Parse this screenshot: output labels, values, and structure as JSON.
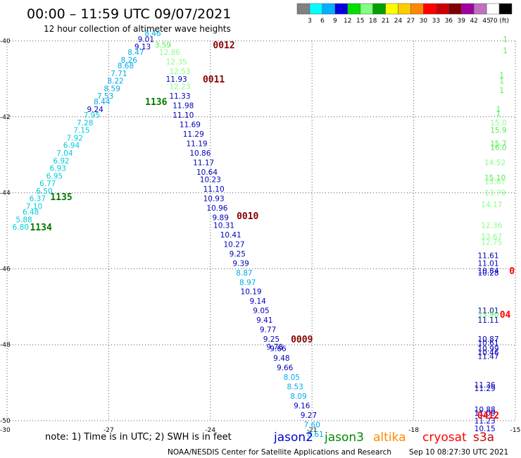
{
  "header": {
    "title": "00:00 – 11:59 UTC 09/07/2021",
    "subtitle": "12 hour collection of altimeter wave heights"
  },
  "colorbar": {
    "colors": [
      "#808080",
      "#00ffff",
      "#00b0ff",
      "#0000e0",
      "#00e000",
      "#80ff80",
      "#00a000",
      "#ffff00",
      "#ffcc00",
      "#ff8800",
      "#ff0000",
      "#cc0000",
      "#800000",
      "#a000a0",
      "#c070c0",
      "#ffffff",
      "#000000"
    ],
    "labels": [
      "3",
      "6",
      "9",
      "12",
      "15",
      "18",
      "21",
      "24",
      "27",
      "30",
      "33",
      "36",
      "39",
      "42",
      "45",
      "70 (ft)"
    ]
  },
  "footer": {
    "note": "note: 1) Time is in UTC; 2) SWH is in feet",
    "credit": "NOAA/NESDIS Center for Satellite Applications and Research",
    "timestamp": "Sep 10 08:27:30 UTC 2021",
    "legend": [
      {
        "name": "jason2",
        "color": "#0000cc"
      },
      {
        "name": "jason3",
        "color": "#008800"
      },
      {
        "name": "altika",
        "color": "#ff8800"
      },
      {
        "name": "cryosat",
        "color": "#ff0000"
      },
      {
        "name": "s3a",
        "color": "#cc0000"
      }
    ]
  },
  "chart_data": {
    "type": "scatter",
    "xlim": [
      -30,
      -15
    ],
    "ylim": [
      -50,
      -40
    ],
    "x_ticks": [
      "-30",
      "-27",
      "-24",
      "-21",
      "-18",
      "-15"
    ],
    "y_ticks": [
      "-40",
      "-42",
      "-44",
      "-46",
      "-48",
      "-50"
    ],
    "grid": true,
    "swh_colors": {
      "c1": "#00ccdd",
      "c2": "#00aaee",
      "c3": "#0000bb",
      "c4": "#55ee55",
      "c5": "#88ff88"
    },
    "tracks": [
      {
        "times": [
          {
            "label": "1134",
            "lon": -29.0,
            "lat": -44.9,
            "color": "#007700"
          },
          {
            "label": "1135",
            "lon": -28.4,
            "lat": -44.1,
            "color": "#007700"
          },
          {
            "label": "1136",
            "lon": -25.6,
            "lat": -41.6,
            "color": "#007700"
          }
        ],
        "points": [
          {
            "lon": -29.6,
            "lat": -44.9,
            "v": "6.80",
            "c": "c1"
          },
          {
            "lon": -29.5,
            "lat": -44.7,
            "v": "5.88",
            "c": "c1"
          },
          {
            "lon": -29.3,
            "lat": -44.5,
            "v": "6.48",
            "c": "c1"
          },
          {
            "lon": -29.2,
            "lat": -44.35,
            "v": "7.10",
            "c": "c1"
          },
          {
            "lon": -29.1,
            "lat": -44.15,
            "v": "6.37",
            "c": "c1"
          },
          {
            "lon": -28.9,
            "lat": -43.95,
            "v": "6.50",
            "c": "c1"
          },
          {
            "lon": -28.8,
            "lat": -43.75,
            "v": "6.77",
            "c": "c1"
          },
          {
            "lon": -28.6,
            "lat": -43.55,
            "v": "6.95",
            "c": "c1"
          },
          {
            "lon": -28.5,
            "lat": -43.35,
            "v": "6.93",
            "c": "c1"
          },
          {
            "lon": -28.4,
            "lat": -43.15,
            "v": "6.92",
            "c": "c1"
          },
          {
            "lon": -28.3,
            "lat": -42.95,
            "v": "7.04",
            "c": "c1"
          },
          {
            "lon": -28.1,
            "lat": -42.75,
            "v": "6.94",
            "c": "c1"
          },
          {
            "lon": -28.0,
            "lat": -42.55,
            "v": "7.92",
            "c": "c1"
          },
          {
            "lon": -27.8,
            "lat": -42.35,
            "v": "7.15",
            "c": "c1"
          },
          {
            "lon": -27.7,
            "lat": -42.15,
            "v": "7.28",
            "c": "c1"
          },
          {
            "lon": -27.5,
            "lat": -41.95,
            "v": "7.95",
            "c": "c1"
          },
          {
            "lon": -27.4,
            "lat": -41.8,
            "v": "9.24",
            "c": "c3"
          },
          {
            "lon": -27.2,
            "lat": -41.6,
            "v": "8.44",
            "c": "c2"
          },
          {
            "lon": -27.1,
            "lat": -41.45,
            "v": "7.53",
            "c": "c2"
          },
          {
            "lon": -26.9,
            "lat": -41.25,
            "v": "8.59",
            "c": "c2"
          },
          {
            "lon": -26.8,
            "lat": -41.05,
            "v": "8.22",
            "c": "c2"
          },
          {
            "lon": -26.7,
            "lat": -40.85,
            "v": "7.71",
            "c": "c2"
          },
          {
            "lon": -26.5,
            "lat": -40.65,
            "v": "8.68",
            "c": "c2"
          },
          {
            "lon": -26.4,
            "lat": -40.5,
            "v": "8.26",
            "c": "c2"
          },
          {
            "lon": -26.2,
            "lat": -40.3,
            "v": "8.47",
            "c": "c2"
          },
          {
            "lon": -26.0,
            "lat": -40.15,
            "v": "9.13",
            "c": "c3"
          },
          {
            "lon": -25.9,
            "lat": -39.95,
            "v": "9.01",
            "c": "c3"
          },
          {
            "lon": -25.7,
            "lat": -39.8,
            "v": "8.46",
            "c": "c2"
          }
        ]
      },
      {
        "times": [
          {
            "label": "0012",
            "lon": -23.6,
            "lat": -40.1,
            "color": "#880000"
          },
          {
            "label": "0011",
            "lon": -23.9,
            "lat": -41.0,
            "color": "#880000"
          },
          {
            "label": "0010",
            "lon": -22.9,
            "lat": -44.6,
            "color": "#880000"
          },
          {
            "label": "0009",
            "lon": -21.3,
            "lat": -47.85,
            "color": "#880000"
          }
        ],
        "points": [
          {
            "lon": -25.4,
            "lat": -40.1,
            "v": "3.59",
            "c": "c4"
          },
          {
            "lon": -25.2,
            "lat": -40.3,
            "v": "12.86",
            "c": "c5"
          },
          {
            "lon": -25.0,
            "lat": -40.55,
            "v": "12.35",
            "c": "c5"
          },
          {
            "lon": -24.9,
            "lat": -40.8,
            "v": "12.53",
            "c": "c5"
          },
          {
            "lon": -25.0,
            "lat": -41.0,
            "v": "11.93",
            "c": "c3"
          },
          {
            "lon": -24.9,
            "lat": -41.2,
            "v": "12.23",
            "c": "c5"
          },
          {
            "lon": -24.9,
            "lat": -41.45,
            "v": "11.33",
            "c": "c3"
          },
          {
            "lon": -24.8,
            "lat": -41.7,
            "v": "11.98",
            "c": "c3"
          },
          {
            "lon": -24.8,
            "lat": -41.95,
            "v": "11.10",
            "c": "c3"
          },
          {
            "lon": -24.6,
            "lat": -42.2,
            "v": "11.69",
            "c": "c3"
          },
          {
            "lon": -24.5,
            "lat": -42.45,
            "v": "11.29",
            "c": "c3"
          },
          {
            "lon": -24.4,
            "lat": -42.7,
            "v": "11.19",
            "c": "c3"
          },
          {
            "lon": -24.3,
            "lat": -42.95,
            "v": "10.86",
            "c": "c3"
          },
          {
            "lon": -24.2,
            "lat": -43.2,
            "v": "11.17",
            "c": "c3"
          },
          {
            "lon": -24.1,
            "lat": -43.45,
            "v": "10.64",
            "c": "c3"
          },
          {
            "lon": -24.0,
            "lat": -43.65,
            "v": "10.23",
            "c": "c3"
          },
          {
            "lon": -23.9,
            "lat": -43.9,
            "v": "11.10",
            "c": "c3"
          },
          {
            "lon": -23.9,
            "lat": -44.15,
            "v": "10.93",
            "c": "c3"
          },
          {
            "lon": -23.8,
            "lat": -44.4,
            "v": "10.96",
            "c": "c3"
          },
          {
            "lon": -23.7,
            "lat": -44.65,
            "v": "9.89",
            "c": "c3"
          },
          {
            "lon": -23.6,
            "lat": -44.85,
            "v": "10.31",
            "c": "c3"
          },
          {
            "lon": -23.4,
            "lat": -45.1,
            "v": "10.41",
            "c": "c3"
          },
          {
            "lon": -23.3,
            "lat": -45.35,
            "v": "10.27",
            "c": "c3"
          },
          {
            "lon": -23.2,
            "lat": -45.6,
            "v": "9.25",
            "c": "c3"
          },
          {
            "lon": -23.1,
            "lat": -45.85,
            "v": "9.39",
            "c": "c3"
          },
          {
            "lon": -23.0,
            "lat": -46.1,
            "v": "8.87",
            "c": "c2"
          },
          {
            "lon": -22.9,
            "lat": -46.35,
            "v": "8.97",
            "c": "c2"
          },
          {
            "lon": -22.8,
            "lat": -46.6,
            "v": "10.19",
            "c": "c3"
          },
          {
            "lon": -22.6,
            "lat": -46.85,
            "v": "9.14",
            "c": "c3"
          },
          {
            "lon": -22.5,
            "lat": -47.1,
            "v": "9.05",
            "c": "c3"
          },
          {
            "lon": -22.4,
            "lat": -47.35,
            "v": "9.41",
            "c": "c3"
          },
          {
            "lon": -22.3,
            "lat": -47.6,
            "v": "9.77",
            "c": "c3"
          },
          {
            "lon": -22.2,
            "lat": -47.85,
            "v": "9.25",
            "c": "c3"
          },
          {
            "lon": -22.1,
            "lat": -48.05,
            "v": "9.78",
            "c": "c3"
          },
          {
            "lon": -22.0,
            "lat": -48.1,
            "v": "9.66",
            "c": "c3"
          },
          {
            "lon": -21.9,
            "lat": -48.35,
            "v": "9.48",
            "c": "c3"
          },
          {
            "lon": -21.8,
            "lat": -48.6,
            "v": "9.66",
            "c": "c3"
          },
          {
            "lon": -21.6,
            "lat": -48.85,
            "v": "8.05",
            "c": "c2"
          },
          {
            "lon": -21.5,
            "lat": -49.1,
            "v": "8.53",
            "c": "c2"
          },
          {
            "lon": -21.4,
            "lat": -49.35,
            "v": "8.09",
            "c": "c2"
          },
          {
            "lon": -21.3,
            "lat": -49.6,
            "v": "9.16",
            "c": "c3"
          },
          {
            "lon": -21.1,
            "lat": -49.85,
            "v": "9.27",
            "c": "c3"
          },
          {
            "lon": -21.0,
            "lat": -50.1,
            "v": "7.60",
            "c": "c2"
          },
          {
            "lon": -20.9,
            "lat": -50.35,
            "v": "8.61",
            "c": "c2"
          }
        ]
      },
      {
        "times": [
          {
            "label": "0",
            "lon": -15.1,
            "lat": -46.05,
            "color": "#ff0000"
          },
          {
            "label": "04",
            "lon": -15.3,
            "lat": -47.2,
            "color": "#ff0000"
          },
          {
            "label": "0412",
            "lon": -15.8,
            "lat": -49.85,
            "color": "#ff0000"
          }
        ],
        "points": [
          {
            "lon": -15.3,
            "lat": -39.95,
            "v": "1",
            "c": "c4"
          },
          {
            "lon": -15.3,
            "lat": -40.25,
            "v": "1",
            "c": "c4"
          },
          {
            "lon": -15.4,
            "lat": -40.9,
            "v": "1",
            "c": "c4"
          },
          {
            "lon": -15.4,
            "lat": -41.05,
            "v": "1",
            "c": "c4"
          },
          {
            "lon": -15.4,
            "lat": -41.3,
            "v": "1",
            "c": "c4"
          },
          {
            "lon": -15.5,
            "lat": -41.8,
            "v": "1",
            "c": "c4"
          },
          {
            "lon": -15.5,
            "lat": -41.9,
            "v": "1",
            "c": "c4"
          },
          {
            "lon": -15.5,
            "lat": -42.15,
            "v": "15.0",
            "c": "c5"
          },
          {
            "lon": -15.5,
            "lat": -42.35,
            "v": "15.9",
            "c": "c4"
          },
          {
            "lon": -15.5,
            "lat": -42.7,
            "v": "15.7",
            "c": "c4"
          },
          {
            "lon": -15.5,
            "lat": -42.8,
            "v": "16.0",
            "c": "c4"
          },
          {
            "lon": -15.6,
            "lat": -43.2,
            "v": "14.52",
            "c": "c5"
          },
          {
            "lon": -15.6,
            "lat": -43.6,
            "v": "15.10",
            "c": "c4"
          },
          {
            "lon": -15.6,
            "lat": -43.7,
            "v": "13.87",
            "c": "c5"
          },
          {
            "lon": -15.6,
            "lat": -44.0,
            "v": "13.79",
            "c": "c5"
          },
          {
            "lon": -15.7,
            "lat": -44.3,
            "v": "14.17",
            "c": "c5"
          },
          {
            "lon": -15.7,
            "lat": -44.85,
            "v": "12.36",
            "c": "c5"
          },
          {
            "lon": -15.7,
            "lat": -45.15,
            "v": "13.67",
            "c": "c5"
          },
          {
            "lon": -15.7,
            "lat": -45.3,
            "v": "12.75",
            "c": "c5"
          },
          {
            "lon": -15.8,
            "lat": -45.65,
            "v": "11.61",
            "c": "c3"
          },
          {
            "lon": -15.8,
            "lat": -45.85,
            "v": "11.01",
            "c": "c3"
          },
          {
            "lon": -15.8,
            "lat": -46.05,
            "v": "10.84",
            "c": "c3"
          },
          {
            "lon": -15.8,
            "lat": -46.1,
            "v": "10.28",
            "c": "c3"
          },
          {
            "lon": -15.8,
            "lat": -47.1,
            "v": "11.01",
            "c": "c3"
          },
          {
            "lon": -15.8,
            "lat": -47.2,
            "v": "13.90",
            "c": "c4"
          },
          {
            "lon": -15.8,
            "lat": -47.35,
            "v": "11.11",
            "c": "c3"
          },
          {
            "lon": -15.8,
            "lat": -47.85,
            "v": "10.87",
            "c": "c3"
          },
          {
            "lon": -15.8,
            "lat": -47.95,
            "v": "10.61",
            "c": "c3"
          },
          {
            "lon": -15.8,
            "lat": -48.1,
            "v": "10.99",
            "c": "c3"
          },
          {
            "lon": -15.8,
            "lat": -48.2,
            "v": "10.46",
            "c": "c3"
          },
          {
            "lon": -15.8,
            "lat": -48.3,
            "v": "11.47",
            "c": "c3"
          },
          {
            "lon": -15.9,
            "lat": -49.05,
            "v": "11.36",
            "c": "c3"
          },
          {
            "lon": -15.9,
            "lat": -49.15,
            "v": "11.29",
            "c": "c3"
          },
          {
            "lon": -15.9,
            "lat": -49.7,
            "v": "10.88",
            "c": "c3"
          },
          {
            "lon": -15.9,
            "lat": -49.8,
            "v": "11.09",
            "c": "c3"
          },
          {
            "lon": -15.9,
            "lat": -50.0,
            "v": "11.23",
            "c": "c3"
          },
          {
            "lon": -15.9,
            "lat": -50.2,
            "v": "10.15",
            "c": "c3"
          }
        ]
      }
    ]
  }
}
